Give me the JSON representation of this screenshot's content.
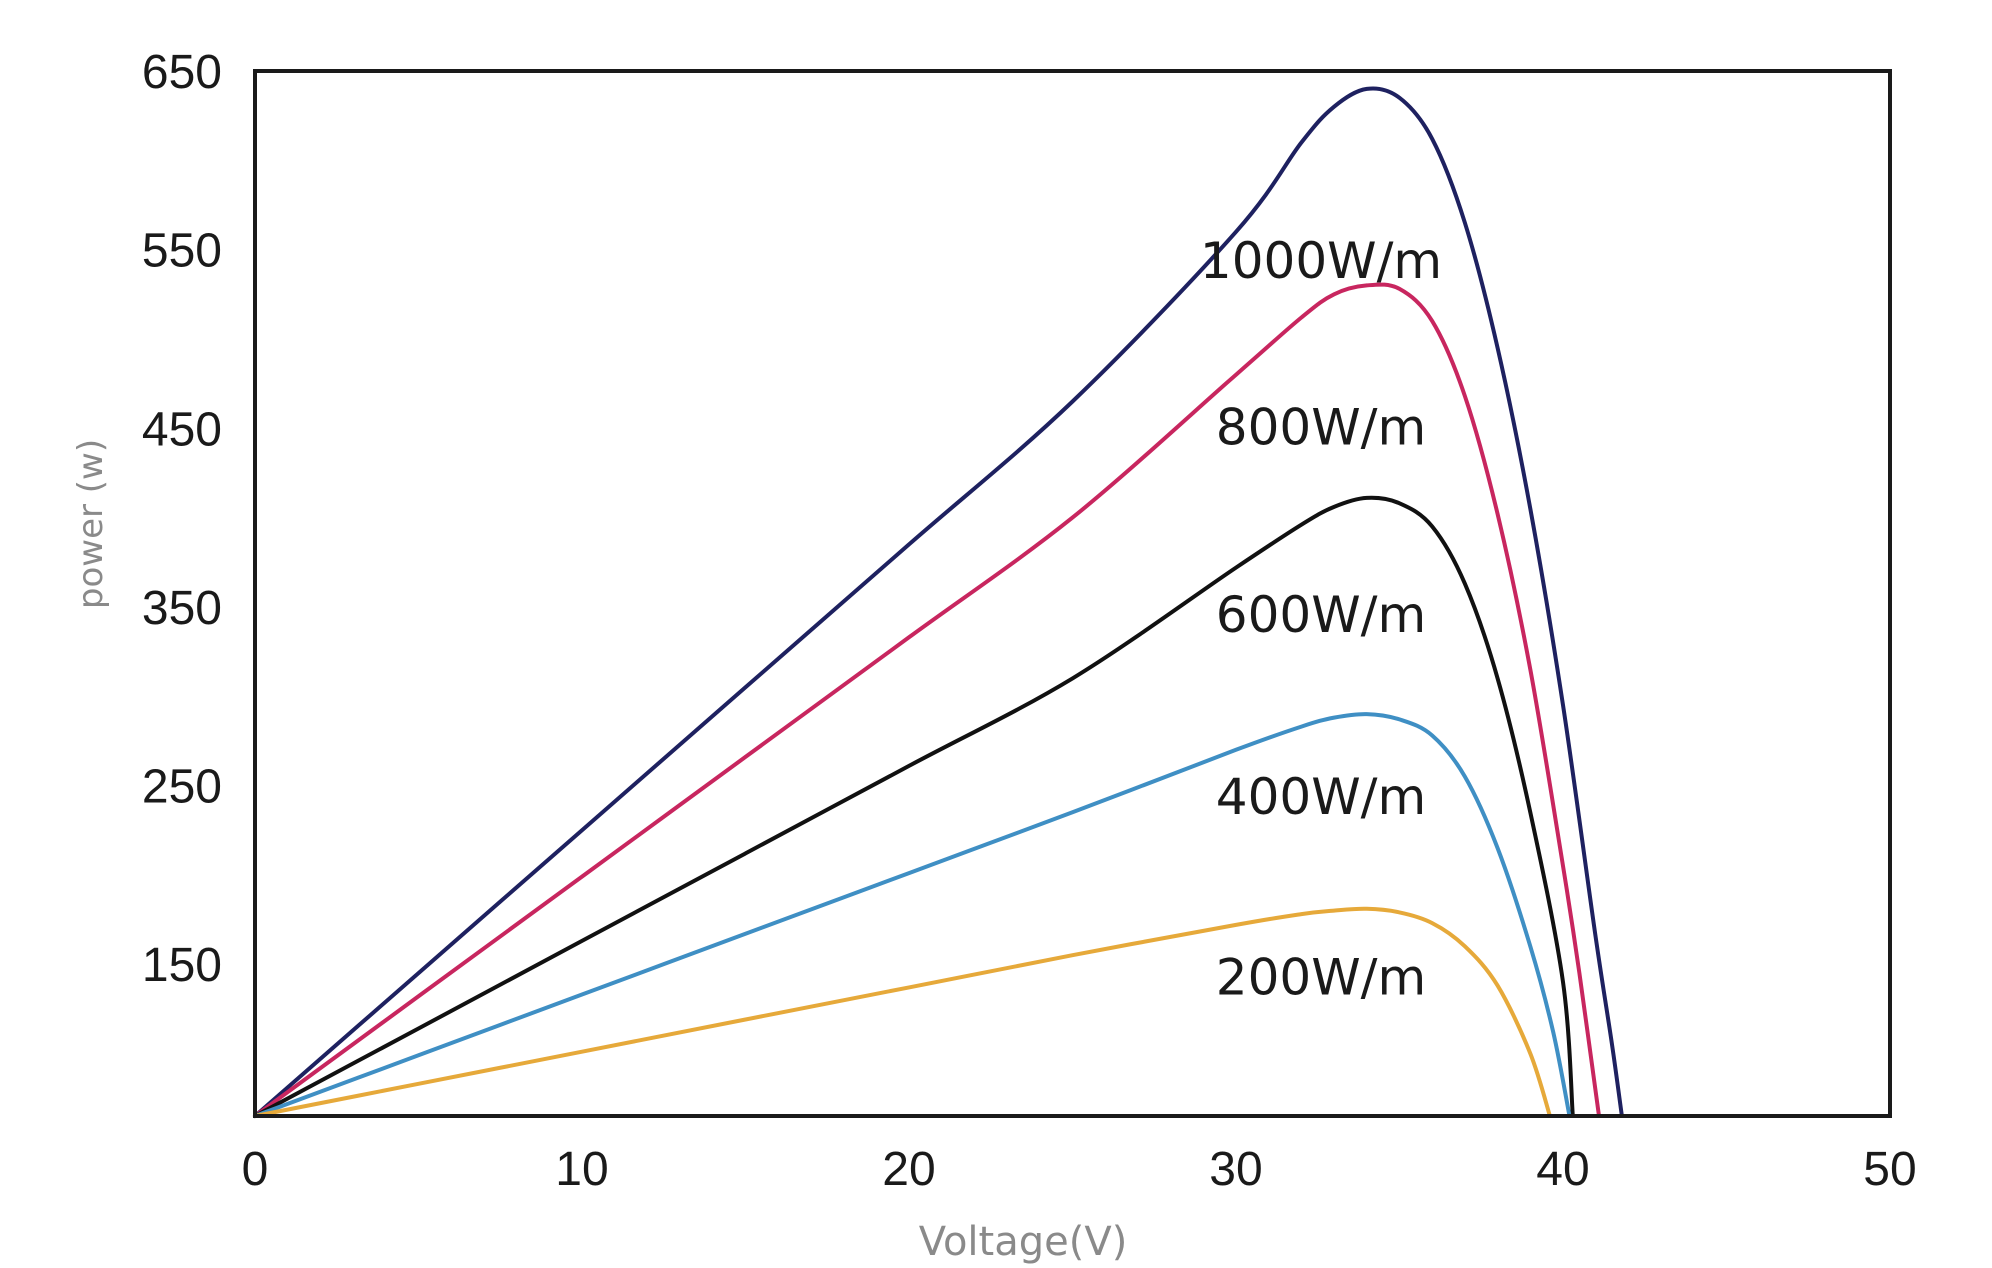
{
  "chart_data": {
    "type": "line",
    "xlabel": "Voltage(V)",
    "ylabel": "power (w)",
    "xlim": [
      0,
      50
    ],
    "ylim": [
      65,
      650
    ],
    "x_ticks": [
      0,
      10,
      20,
      30,
      40,
      50
    ],
    "y_ticks": [
      150,
      250,
      350,
      450,
      550,
      650
    ],
    "grid": false,
    "series": [
      {
        "name": "1000W/m",
        "color": "#1e2160",
        "x": [
          0,
          5,
          10,
          15,
          20,
          25,
          30,
          32,
          33,
          34,
          35,
          36,
          37,
          38,
          39,
          40,
          41,
          41.5,
          41.8
        ],
        "y": [
          65,
          145,
          225,
          305,
          385,
          465,
          560,
          610,
          630,
          640,
          635,
          612,
          565,
          495,
          405,
          295,
          165,
          105,
          65
        ]
      },
      {
        "name": "800W/m",
        "color": "#c8265f",
        "x": [
          0,
          5,
          10,
          15,
          20,
          25,
          30,
          32,
          33,
          34,
          35,
          36,
          37,
          38,
          39,
          40,
          40.5,
          41.1
        ],
        "y": [
          65,
          132,
          199,
          266,
          333,
          400,
          480,
          512,
          525,
          530,
          528,
          510,
          468,
          402,
          315,
          205,
          145,
          65
        ]
      },
      {
        "name": "600W/m",
        "color": "#111111",
        "x": [
          0,
          5,
          10,
          15,
          20,
          25,
          30,
          32,
          33,
          34,
          35,
          36,
          37,
          38,
          39,
          40,
          40.3
        ],
        "y": [
          65,
          114,
          163,
          212,
          261,
          310,
          372,
          396,
          406,
          411,
          408,
          395,
          363,
          310,
          235,
          140,
          65
        ]
      },
      {
        "name": "400W/m",
        "color": "#3f8fc4",
        "x": [
          0,
          5,
          10,
          15,
          20,
          25,
          30,
          32,
          33,
          34,
          35,
          36,
          37,
          38,
          39,
          39.7,
          40.2
        ],
        "y": [
          65,
          99,
          133,
          167,
          201,
          235,
          270,
          283,
          288,
          290,
          287,
          278,
          255,
          215,
          160,
          112,
          65
        ]
      },
      {
        "name": "200W/m",
        "color": "#e6a93a",
        "x": [
          0,
          5,
          10,
          15,
          20,
          25,
          30,
          32,
          33,
          34,
          35,
          36,
          37,
          38,
          39,
          39.6
        ],
        "y": [
          65,
          83,
          101,
          119,
          137,
          155,
          172,
          178,
          180,
          181,
          179,
          173,
          160,
          138,
          100,
          65
        ]
      }
    ],
    "annotations": [
      {
        "text": "1000W/m",
        "x": 32.6,
        "y": 534
      },
      {
        "text": "800W/m",
        "x": 32.6,
        "y": 441
      },
      {
        "text": "600W/m",
        "x": 32.6,
        "y": 336
      },
      {
        "text": "400W/m",
        "x": 32.6,
        "y": 234
      },
      {
        "text": "200W/m",
        "x": 32.6,
        "y": 133
      }
    ]
  }
}
